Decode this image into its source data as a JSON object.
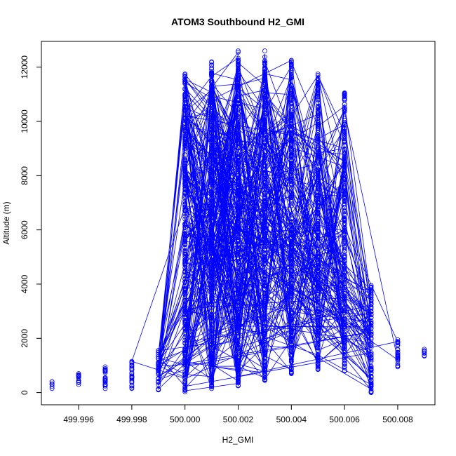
{
  "chart_data": {
    "type": "scatter",
    "title": "ATOM3 Southbound H2_GMI",
    "xlabel": "H2_GMI",
    "ylabel": "Altitude (m)",
    "xlim": [
      499.9946,
      500.0094
    ],
    "ylim": [
      -450,
      12950
    ],
    "x_ticks": [
      499.996,
      499.998,
      500.0,
      500.002,
      500.004,
      500.006,
      500.008
    ],
    "x_tick_labels": [
      "499.996",
      "499.998",
      "500.000",
      "500.002",
      "500.004",
      "500.006",
      "500.008"
    ],
    "y_ticks": [
      0,
      2000,
      4000,
      6000,
      8000,
      10000,
      12000
    ],
    "y_tick_labels": [
      "0",
      "2000",
      "4000",
      "6000",
      "8000",
      "10000",
      "12000"
    ],
    "point_style": "open-circle",
    "connected": true,
    "color": "#0000ff",
    "columns": [
      {
        "x": 499.995,
        "y_min": 150,
        "y_max": 400
      },
      {
        "x": 499.996,
        "y_min": 300,
        "y_max": 700
      },
      {
        "x": 499.997,
        "y_min": 150,
        "y_max": 950
      },
      {
        "x": 499.998,
        "y_min": 150,
        "y_max": 1150
      },
      {
        "x": 499.999,
        "y_min": 100,
        "y_max": 1550
      },
      {
        "x": 500.0,
        "y_min": 30,
        "y_max": 11750
      },
      {
        "x": 500.001,
        "y_min": 150,
        "y_max": 12200
      },
      {
        "x": 500.002,
        "y_min": 250,
        "y_max": 12600
      },
      {
        "x": 500.003,
        "y_min": 450,
        "y_max": 12600
      },
      {
        "x": 500.004,
        "y_min": 700,
        "y_max": 12250
      },
      {
        "x": 500.005,
        "y_min": 850,
        "y_max": 11750
      },
      {
        "x": 500.006,
        "y_min": 800,
        "y_max": 11050
      },
      {
        "x": 500.007,
        "y_min": 0,
        "y_max": 3950
      },
      {
        "x": 500.008,
        "y_min": 950,
        "y_max": 1950
      },
      {
        "x": 500.009,
        "y_min": 1350,
        "y_max": 1600
      }
    ]
  }
}
